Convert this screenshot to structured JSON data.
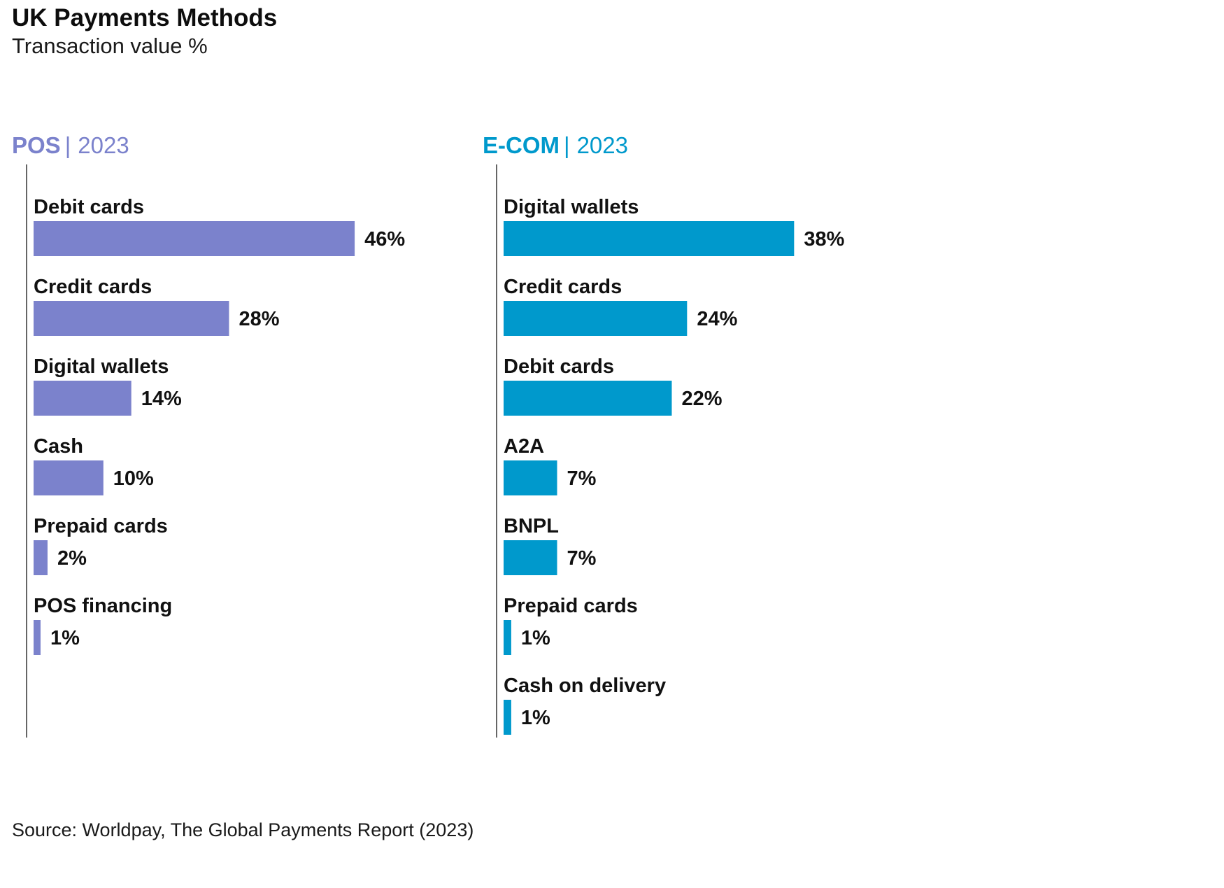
{
  "title": "UK Payments Methods",
  "subtitle": "Transaction value %",
  "source": "Source: Worldpay, The Global Payments Report (2023)",
  "value_suffix": "%",
  "chart_data": [
    {
      "type": "bar",
      "orientation": "horizontal",
      "panel_name": "POS",
      "panel_year": "2023",
      "color": "#7b82cc",
      "categories": [
        "Debit cards",
        "Credit cards",
        "Digital wallets",
        "Cash",
        "Prepaid cards",
        "POS financing"
      ],
      "values": [
        46,
        28,
        14,
        10,
        2,
        1
      ],
      "unit": "%"
    },
    {
      "type": "bar",
      "orientation": "horizontal",
      "panel_name": "E-COM",
      "panel_year": "2023",
      "color": "#0099cc",
      "categories": [
        "Digital wallets",
        "Credit cards",
        "Debit cards",
        "A2A",
        "BNPL",
        "Prepaid cards",
        "Cash on delivery"
      ],
      "values": [
        38,
        24,
        22,
        7,
        7,
        1,
        1
      ],
      "unit": "%"
    }
  ]
}
